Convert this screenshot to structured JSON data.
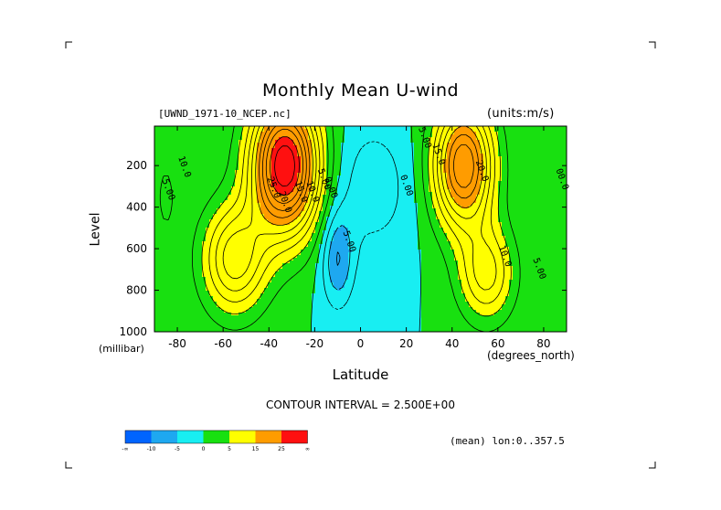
{
  "title": "Monthly Mean U-wind",
  "file_label": "[UWND_1971-10_NCEP.nc]",
  "units_label": "(units:m/s)",
  "contour_interval_text": "CONTOUR INTERVAL = 2.500E+00",
  "mean_text": "(mean) lon:0..357.5",
  "colors": {
    "cmap": [
      "#0064ff",
      "#1ea8f0",
      "#18eef2",
      "#18e010",
      "#ffff00",
      "#ff9c00",
      "#ff1010"
    ]
  },
  "colorbar": {
    "tick_labels": [
      "-∞",
      "-10",
      "-5",
      "0",
      "5",
      "15",
      "25",
      "∞"
    ]
  },
  "chart_data": {
    "type": "heatmap",
    "title": "Monthly Mean U-wind",
    "xlabel": "Latitude",
    "ylabel": "Level",
    "x_unit": "(degrees_north)",
    "y_unit": "(millibar)",
    "xlim": [
      -90,
      90
    ],
    "ylim": [
      1000,
      10
    ],
    "x_ticks": [
      -80,
      -60,
      -40,
      -20,
      0,
      20,
      40,
      60,
      80
    ],
    "x_tick_labels": [
      "-80",
      "-60",
      "-40",
      "-20",
      "0",
      "20",
      "40",
      "60",
      "80"
    ],
    "y_ticks": [
      200,
      400,
      600,
      800,
      1000
    ],
    "y_tick_labels": [
      "200",
      "400",
      "600",
      "800",
      "1000"
    ],
    "contour_interval": 2.5,
    "contour_levels": [
      -10,
      -5,
      0,
      5,
      15,
      25
    ],
    "features": [
      {
        "name": "southern jet",
        "lat": -33,
        "level": 200,
        "value": 30
      },
      {
        "name": "northern jet",
        "lat": 45,
        "level": 200,
        "value": 22.5
      },
      {
        "name": "tropical easterlies",
        "lat": -10,
        "level": 650,
        "value": -7.5
      }
    ],
    "contour_labels": [
      {
        "text": "10.0",
        "lat": -78,
        "level": 210
      },
      {
        "text": "5.00",
        "lat": -85,
        "level": 320
      },
      {
        "text": "25.0",
        "lat": -39,
        "level": 310
      },
      {
        "text": "20.0",
        "lat": -34,
        "level": 380
      },
      {
        "text": "15.0",
        "lat": -27,
        "level": 330
      },
      {
        "text": "10.0",
        "lat": -22,
        "level": 330
      },
      {
        "text": "5.00",
        "lat": -17,
        "level": 270
      },
      {
        "text": "0.00",
        "lat": -14,
        "level": 310
      },
      {
        "text": "5.00",
        "lat": -6,
        "level": 570
      },
      {
        "text": "0.00",
        "lat": 19,
        "level": 300
      },
      {
        "text": "5.00",
        "lat": 27,
        "level": 70
      },
      {
        "text": "15.0",
        "lat": 33,
        "level": 150
      },
      {
        "text": "20.0",
        "lat": 52,
        "level": 230
      },
      {
        "text": "10.0",
        "lat": 62,
        "level": 640
      },
      {
        "text": "5.00",
        "lat": 77,
        "level": 700
      },
      {
        "text": "00.0",
        "lat": 87,
        "level": 270
      }
    ]
  }
}
